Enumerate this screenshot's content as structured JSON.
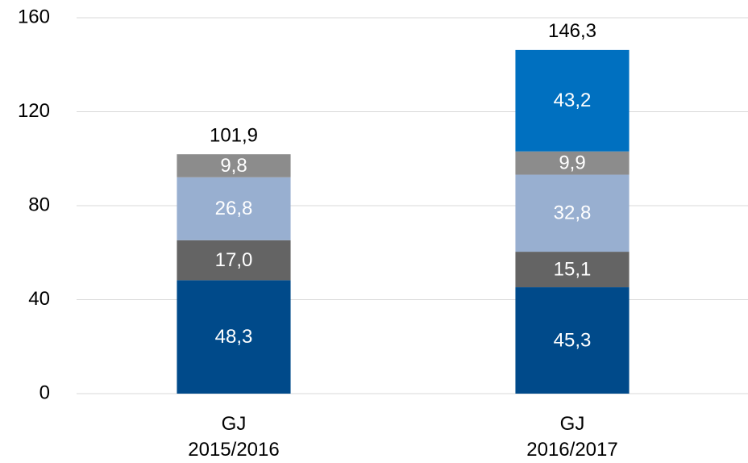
{
  "chart_data": {
    "type": "stacked_bar",
    "categories": [
      "GJ\n2015/2016",
      "GJ\n2016/2017"
    ],
    "series": [
      {
        "color": "#004a8a",
        "values": [
          48.3,
          45.3
        ],
        "value_labels": [
          "48,3",
          "45,3"
        ]
      },
      {
        "color": "#646464",
        "values": [
          17.0,
          15.1
        ],
        "value_labels": [
          "17,0",
          "15,1"
        ]
      },
      {
        "color": "#98afd0",
        "values": [
          26.8,
          32.8
        ],
        "value_labels": [
          "26,8",
          "32,8"
        ]
      },
      {
        "color": "#8c8c8c",
        "values": [
          9.8,
          9.9
        ],
        "value_labels": [
          "9,8",
          "9,9"
        ]
      },
      {
        "color": "#0070c0",
        "values": [
          null,
          43.2
        ],
        "value_labels": [
          null,
          "43,2"
        ]
      }
    ],
    "totals": [
      101.9,
      146.3
    ],
    "total_labels": [
      "101,9",
      "146,3"
    ],
    "ylim": [
      0,
      160
    ],
    "yticks": [
      0,
      40,
      80,
      120,
      160
    ],
    "grid": true
  }
}
